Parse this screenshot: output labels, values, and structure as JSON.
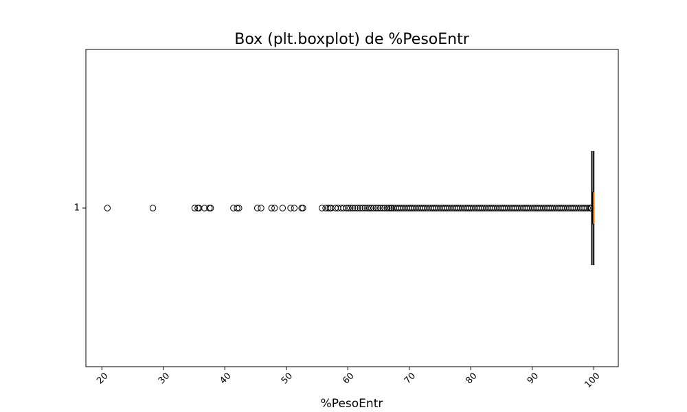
{
  "chart_data": {
    "type": "boxplot",
    "orientation": "horizontal",
    "title": "Box (plt.boxplot) de %PesoEntr",
    "xlabel": "%PesoEntr",
    "ylabel": "",
    "xlim": [
      17.4,
      104.0
    ],
    "ylim": [
      0.5,
      1.5
    ],
    "x_ticks": [
      20,
      30,
      40,
      50,
      60,
      70,
      80,
      90,
      100
    ],
    "x_tick_labels": [
      "20",
      "30",
      "40",
      "50",
      "60",
      "70",
      "80",
      "90",
      "100"
    ],
    "x_tick_rotation_deg": 45,
    "y_ticks": [
      1
    ],
    "y_tick_labels": [
      "1"
    ],
    "grid": false,
    "colors": {
      "box": "#000000",
      "median": "#ff7f0e",
      "whisker": "#000000",
      "flier_edge": "#000000"
    },
    "box": {
      "position": 1,
      "q1": 99.85,
      "median": 100.0,
      "q3": 100.0,
      "whisker_low": 99.7,
      "whisker_high": 100.0,
      "cap_half_width": 0.18,
      "box_half_width": 0.05
    },
    "fliers": [
      20.9,
      28.3,
      35.1,
      35.6,
      35.8,
      36.7,
      37.5,
      37.7,
      41.4,
      42.0,
      42.3,
      45.3,
      45.9,
      47.6,
      48.1,
      49.4,
      50.7,
      51.3,
      52.5,
      52.7,
      55.8,
      56.4,
      56.8,
      57.1,
      57.3,
      58.0,
      58.4,
      58.9,
      59.3,
      59.8,
      60.1,
      60.4,
      60.8,
      61.2,
      61.6,
      62.0,
      62.4,
      62.8,
      63.2,
      63.5,
      63.8,
      64.2,
      64.6,
      64.9,
      65.3,
      65.7,
      66.0,
      66.4,
      66.7,
      67.0,
      67.2,
      67.5,
      67.8,
      68.1,
      68.4,
      68.7,
      69.0,
      69.3,
      69.6,
      69.9,
      70.2,
      70.5,
      70.8,
      71.1,
      71.4,
      71.7,
      72.0,
      72.3,
      72.6,
      72.9,
      73.2,
      73.5,
      73.8,
      74.1,
      74.4,
      74.7,
      75.0,
      75.3,
      75.6,
      75.9,
      76.2,
      76.5,
      76.8,
      77.1,
      77.4,
      77.7,
      78.0,
      78.3,
      78.6,
      78.9,
      79.2,
      79.5,
      79.8,
      80.1,
      80.4,
      80.7,
      81.0,
      81.3,
      81.6,
      81.9,
      82.2,
      82.5,
      82.8,
      83.1,
      83.4,
      83.7,
      84.0,
      84.3,
      84.6,
      84.9,
      85.2,
      85.5,
      85.8,
      86.1,
      86.4,
      86.7,
      87.0,
      87.3,
      87.6,
      87.9,
      88.2,
      88.5,
      88.8,
      89.1,
      89.4,
      89.7,
      90.0,
      90.3,
      90.6,
      90.9,
      91.2,
      91.5,
      91.8,
      92.1,
      92.4,
      92.7,
      93.0,
      93.3,
      93.6,
      93.9,
      94.2,
      94.5,
      94.8,
      95.1,
      95.4,
      95.7,
      96.0,
      96.3,
      96.6,
      96.9,
      97.2,
      97.5,
      97.8,
      98.1,
      98.4,
      98.7,
      99.0,
      99.3,
      99.5,
      99.6
    ]
  }
}
